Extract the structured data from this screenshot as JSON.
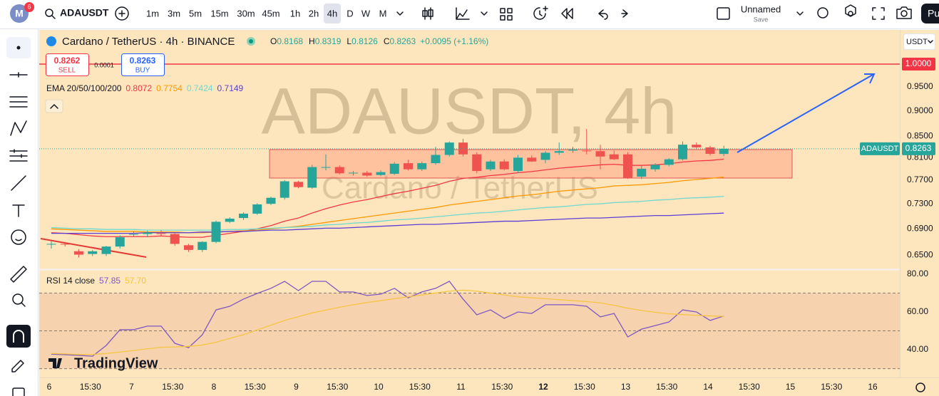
{
  "toolbar": {
    "symbol": "ADAUSDT",
    "avatar_badge": "6",
    "intervals": [
      "1m",
      "3m",
      "5m",
      "15m",
      "30m",
      "45m",
      "1h",
      "2h",
      "4h",
      "D",
      "W",
      "M"
    ],
    "active_interval": "4h",
    "layout_name": "Unnamed",
    "layout_status": "Save",
    "publish": "Pu"
  },
  "legend": {
    "ohlc_labels": [
      "O",
      "H",
      "L",
      "C"
    ],
    "change": "+0.0095 (+1.16%)",
    "sell_price": "0.8262",
    "sell": "SELL",
    "spread": "0.0001",
    "buy_price": "0.8263",
    "buy": "BUY",
    "price_tag": "ADAUSDT"
  },
  "watermark": {
    "symbol": "ADAUSDT, 4h",
    "name": "Cardano / TetherUS"
  },
  "currency": "USDT",
  "logo": "TradingView",
  "chart_data": [
    {
      "type": "candlestick",
      "title": "Cardano / TetherUS · 4h · BINANCE",
      "indicator_title": "EMA 20/50/100/200",
      "candles": [
        [
          0.666,
          0.671,
          0.66,
          0.667
        ],
        [
          0.667,
          0.67,
          0.663,
          0.666
        ],
        [
          0.656,
          0.659,
          0.647,
          0.651
        ],
        [
          0.652,
          0.658,
          0.649,
          0.656
        ],
        [
          0.652,
          0.664,
          0.649,
          0.663
        ],
        [
          0.663,
          0.68,
          0.66,
          0.677
        ],
        [
          0.681,
          0.686,
          0.678,
          0.682
        ],
        [
          0.682,
          0.687,
          0.678,
          0.684
        ],
        [
          0.683,
          0.688,
          0.679,
          0.682
        ],
        [
          0.682,
          0.684,
          0.664,
          0.667
        ],
        [
          0.665,
          0.667,
          0.655,
          0.658
        ],
        [
          0.658,
          0.671,
          0.655,
          0.67
        ],
        [
          0.67,
          0.703,
          0.668,
          0.701
        ],
        [
          0.701,
          0.708,
          0.699,
          0.706
        ],
        [
          0.707,
          0.716,
          0.704,
          0.714
        ],
        [
          0.714,
          0.731,
          0.712,
          0.729
        ],
        [
          0.73,
          0.742,
          0.728,
          0.74
        ],
        [
          0.74,
          0.77,
          0.737,
          0.768
        ],
        [
          0.767,
          0.769,
          0.756,
          0.758
        ],
        [
          0.757,
          0.797,
          0.755,
          0.793
        ],
        [
          0.792,
          0.816,
          0.787,
          0.793
        ],
        [
          0.793,
          0.796,
          0.78,
          0.782
        ],
        [
          0.782,
          0.786,
          0.778,
          0.783
        ],
        [
          0.783,
          0.786,
          0.776,
          0.778
        ],
        [
          0.779,
          0.787,
          0.777,
          0.784
        ],
        [
          0.781,
          0.802,
          0.779,
          0.799
        ],
        [
          0.8,
          0.806,
          0.787,
          0.789
        ],
        [
          0.789,
          0.803,
          0.786,
          0.8
        ],
        [
          0.8,
          0.83,
          0.797,
          0.815
        ],
        [
          0.815,
          0.84,
          0.812,
          0.838
        ],
        [
          0.838,
          0.845,
          0.812,
          0.816
        ],
        [
          0.816,
          0.82,
          0.782,
          0.786
        ],
        [
          0.789,
          0.806,
          0.786,
          0.803
        ],
        [
          0.803,
          0.807,
          0.787,
          0.789
        ],
        [
          0.786,
          0.815,
          0.783,
          0.81
        ],
        [
          0.81,
          0.814,
          0.802,
          0.803
        ],
        [
          0.806,
          0.822,
          0.8,
          0.819
        ],
        [
          0.819,
          0.838,
          0.815,
          0.822
        ],
        [
          0.823,
          0.83,
          0.819,
          0.825
        ],
        [
          0.823,
          0.864,
          0.816,
          0.822
        ],
        [
          0.822,
          0.834,
          0.789,
          0.812
        ],
        [
          0.816,
          0.823,
          0.806,
          0.807
        ],
        [
          0.816,
          0.82,
          0.772,
          0.774
        ],
        [
          0.776,
          0.795,
          0.772,
          0.79
        ],
        [
          0.789,
          0.8,
          0.785,
          0.797
        ],
        [
          0.797,
          0.809,
          0.794,
          0.807
        ],
        [
          0.807,
          0.84,
          0.805,
          0.834
        ],
        [
          0.834,
          0.838,
          0.826,
          0.829
        ],
        [
          0.829,
          0.832,
          0.814,
          0.817
        ],
        [
          0.8168,
          0.8319,
          0.8126,
          0.8263
        ]
      ],
      "up_color": "#26a69a",
      "down_color": "#ef5350",
      "series": [
        {
          "color": "#f23645",
          "values": [
            0.684,
            0.683,
            0.681,
            0.679,
            0.678,
            0.678,
            0.678,
            0.678,
            0.679,
            0.678,
            0.677,
            0.677,
            0.68,
            0.683,
            0.686,
            0.69,
            0.695,
            0.702,
            0.707,
            0.715,
            0.722,
            0.728,
            0.733,
            0.737,
            0.742,
            0.747,
            0.751,
            0.756,
            0.761,
            0.768,
            0.773,
            0.775,
            0.778,
            0.78,
            0.783,
            0.785,
            0.788,
            0.791,
            0.793,
            0.795,
            0.797,
            0.798,
            0.796,
            0.796,
            0.797,
            0.799,
            0.802,
            0.804,
            0.805,
            0.8072
          ]
        },
        {
          "color": "#ff9800",
          "values": [
            0.69,
            0.689,
            0.688,
            0.687,
            0.686,
            0.686,
            0.686,
            0.685,
            0.685,
            0.685,
            0.684,
            0.684,
            0.685,
            0.686,
            0.687,
            0.688,
            0.69,
            0.692,
            0.694,
            0.697,
            0.7,
            0.703,
            0.706,
            0.709,
            0.712,
            0.715,
            0.718,
            0.721,
            0.724,
            0.728,
            0.731,
            0.734,
            0.737,
            0.74,
            0.743,
            0.745,
            0.748,
            0.751,
            0.753,
            0.755,
            0.757,
            0.76,
            0.761,
            0.762,
            0.764,
            0.766,
            0.769,
            0.771,
            0.773,
            0.7754
          ]
        },
        {
          "color": "#6fd8cf",
          "values": [
            0.692,
            0.691,
            0.69,
            0.69,
            0.689,
            0.689,
            0.689,
            0.688,
            0.688,
            0.688,
            0.688,
            0.688,
            0.688,
            0.689,
            0.689,
            0.69,
            0.691,
            0.692,
            0.693,
            0.694,
            0.696,
            0.697,
            0.699,
            0.7,
            0.702,
            0.704,
            0.705,
            0.707,
            0.709,
            0.711,
            0.713,
            0.715,
            0.716,
            0.718,
            0.72,
            0.722,
            0.724,
            0.725,
            0.727,
            0.729,
            0.73,
            0.732,
            0.733,
            0.734,
            0.736,
            0.737,
            0.739,
            0.74,
            0.741,
            0.7424
          ]
        },
        {
          "color": "#5b3fd6",
          "values": [
            0.683,
            0.683,
            0.683,
            0.683,
            0.683,
            0.683,
            0.683,
            0.684,
            0.684,
            0.684,
            0.684,
            0.685,
            0.685,
            0.686,
            0.686,
            0.687,
            0.688,
            0.688,
            0.689,
            0.69,
            0.691,
            0.691,
            0.692,
            0.693,
            0.694,
            0.695,
            0.696,
            0.697,
            0.697,
            0.698,
            0.699,
            0.7,
            0.701,
            0.702,
            0.702,
            0.703,
            0.704,
            0.705,
            0.706,
            0.707,
            0.707,
            0.708,
            0.709,
            0.71,
            0.711,
            0.711,
            0.712,
            0.713,
            0.714,
            0.7149
          ]
        }
      ],
      "log_scale": true,
      "grid": false,
      "ylim": [
        0.63,
        1.08
      ],
      "yticks": [
        {
          "value": 0.65,
          "label": "0.6500"
        },
        {
          "value": 0.69,
          "label": "0.6900"
        },
        {
          "value": 0.73,
          "label": "0.7300"
        },
        {
          "value": 0.77,
          "label": "0.7700"
        },
        {
          "value": 0.81,
          "label": "0.8100"
        },
        {
          "value": 0.85,
          "label": "0.8500"
        },
        {
          "value": 0.9,
          "label": "0.9000"
        },
        {
          "value": 0.95,
          "label": "0.9500"
        }
      ],
      "alert_level": {
        "value": 1,
        "label": "1.0000"
      },
      "time_labels": [
        "6",
        "15:30",
        "7",
        "15:30",
        "8",
        "15:30",
        "9",
        "15:30",
        "10",
        "15:30",
        "11",
        "15:30",
        "12",
        "15:30",
        "13",
        "15:30",
        "14",
        "15:30",
        "15",
        "15:30",
        "16"
      ]
    },
    {
      "type": "line",
      "title": "RSI 14 close",
      "ylim": [
        29.1,
        82.6
      ],
      "yticks": [
        {
          "value": 80,
          "label": "80.00"
        },
        {
          "value": 60,
          "label": "60.00"
        },
        {
          "value": 40,
          "label": "40.00"
        }
      ],
      "bands": [
        70,
        50,
        30
      ],
      "series": [
        {
          "color": "#7e57c2",
          "values": [
            37.7,
            37.4,
            37.0,
            36.6,
            42.3,
            50.6,
            50.6,
            52.5,
            52.5,
            43.4,
            41.1,
            47.9,
            61.1,
            63.0,
            66.8,
            69.8,
            72.5,
            76.2,
            71.3,
            76.2,
            76.2,
            70.6,
            70.6,
            68.7,
            69.4,
            72.5,
            67.5,
            70.6,
            72.5,
            76.2,
            66.8,
            58.5,
            61.1,
            56.6,
            60.0,
            59.2,
            63.8,
            63.8,
            63.8,
            63.0,
            57.4,
            59.2,
            46.8,
            50.9,
            52.8,
            54.7,
            61.1,
            60.0,
            55.5,
            57.85
          ]
        },
        {
          "color": "#f5c542",
          "last_value_label": "57.70",
          "values": [
            38.0,
            37.8,
            37.5,
            37.5,
            38.0,
            38.8,
            39.6,
            40.5,
            41.3,
            41.5,
            41.8,
            42.5,
            44.0,
            46.0,
            48.0,
            50.5,
            53.0,
            55.5,
            57.5,
            59.5,
            61.0,
            62.5,
            63.8,
            65.0,
            66.0,
            67.0,
            68.0,
            69.0,
            70.0,
            71.0,
            71.5,
            71.0,
            70.0,
            69.0,
            68.0,
            67.5,
            67.0,
            66.5,
            66.0,
            65.5,
            64.8,
            63.5,
            62.0,
            60.8,
            59.8,
            59.0,
            58.6,
            58.2,
            57.9,
            57.7
          ]
        }
      ]
    }
  ]
}
